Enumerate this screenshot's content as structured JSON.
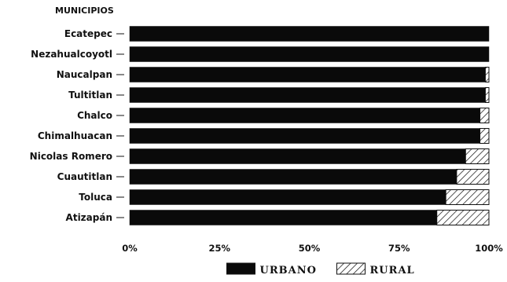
{
  "chart_data": {
    "type": "bar",
    "orientation": "horizontal",
    "stacked": true,
    "ylabel": "MUNICIPIOS",
    "categories": [
      "Ecatepec",
      "Nezahualcoyotl",
      "Naucalpan",
      "Tultitlan",
      "Chalco",
      "Chimalhuacan",
      "Nicolas Romero",
      "Cuautitlan",
      "Toluca",
      "Atizapán"
    ],
    "series": [
      {
        "name": "URBANO",
        "values": [
          100,
          100,
          99,
          99,
          97.5,
          97.5,
          93.5,
          91,
          88,
          85.5
        ],
        "color": "#0a0a0a",
        "pattern": "solid"
      },
      {
        "name": "RURAL",
        "values": [
          0,
          0,
          1,
          1,
          2.5,
          2.5,
          6.5,
          9,
          12,
          14.5
        ],
        "color": "#ffffff",
        "pattern": "hatched"
      }
    ],
    "xticks": [
      "0%",
      "25%",
      "50%",
      "75%",
      "100%"
    ],
    "xlim": [
      0,
      100
    ],
    "grid": false,
    "legend_position": "bottom-center"
  }
}
